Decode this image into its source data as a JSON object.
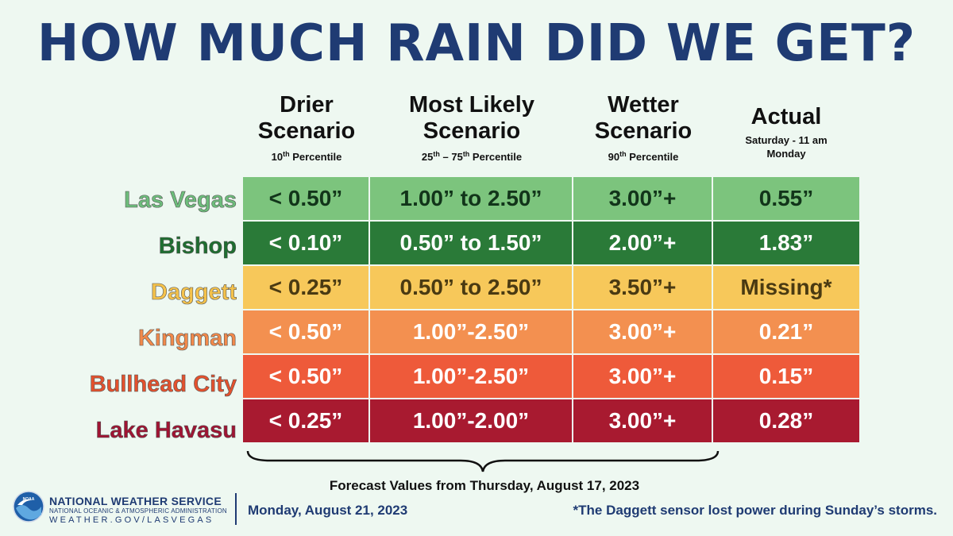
{
  "title": "HOW MUCH RAIN DID WE GET?",
  "columns": [
    {
      "main": "Drier Scenario",
      "sub_pre": "10",
      "sub_sup": "th",
      "sub_post": " Percentile"
    },
    {
      "main": "Most Likely Scenario",
      "sub_pre": "25",
      "sub_sup": "th",
      "sub_mid": " – 75",
      "sub_sup2": "th",
      "sub_post": " Percentile"
    },
    {
      "main": "Wetter Scenario",
      "sub_pre": "90",
      "sub_sup": "th",
      "sub_post": " Percentile"
    },
    {
      "main": "Actual",
      "sub": "Saturday - 11 am\nMonday"
    }
  ],
  "rows": [
    {
      "location": "Las Vegas",
      "label_color": "#6dbd7b",
      "bg": "#7cc47d",
      "text_color": "#12351a",
      "values": [
        "< 0.50”",
        "1.00” to 2.50”",
        "3.00”+",
        "0.55”"
      ]
    },
    {
      "location": "Bishop",
      "label_color": "#1e6e30",
      "bg": "#2a7a38",
      "text_color": "#ffffff",
      "values": [
        "< 0.10”",
        "0.50” to 1.50”",
        "2.00”+",
        "1.83”"
      ]
    },
    {
      "location": "Daggett",
      "label_color": "#f5c24a",
      "bg": "#f7c85a",
      "text_color": "#4a3a12",
      "values": [
        "< 0.25”",
        "0.50” to 2.50”",
        "3.50”+",
        "Missing*"
      ]
    },
    {
      "location": "Kingman",
      "label_color": "#f2894a",
      "bg": "#f39050",
      "text_color": "#ffffff",
      "values": [
        "< 0.50”",
        "1.00”-2.50”",
        "3.00”+",
        "0.21”"
      ]
    },
    {
      "location": "Bullhead City",
      "label_color": "#e4512d",
      "bg": "#ee5a3a",
      "text_color": "#ffffff",
      "values": [
        "< 0.50”",
        "1.00”-2.50”",
        "3.00”+",
        "0.15”"
      ]
    },
    {
      "location": "Lake Havasu",
      "label_color": "#a01433",
      "bg": "#a81a30",
      "text_color": "#ffffff",
      "values": [
        "< 0.25”",
        "1.00”-2.00”",
        "3.00”+",
        "0.28”"
      ]
    }
  ],
  "forecast_note": "Forecast Values from Thursday,  August 17, 2023",
  "agency": {
    "line1": "NATIONAL WEATHER SERVICE",
    "line2": "NATIONAL OCEANIC & ATMOSPHERIC ADMINISTRATION",
    "line3": "WEATHER.GOV/LASVEGAS",
    "logo_text": "NOAA"
  },
  "date": "Monday,  August 21, 2023",
  "footnote": "*The Daggett sensor lost power during Sunday’s storms."
}
